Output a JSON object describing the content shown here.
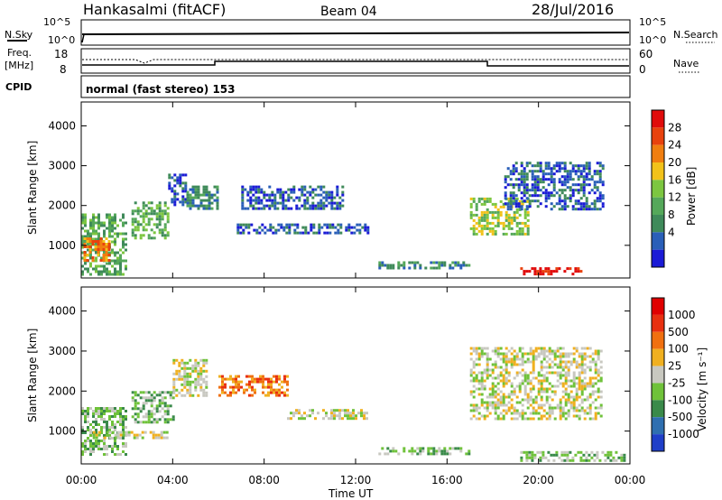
{
  "header": {
    "station": "Hankasalmi (fitACF)",
    "beam": "Beam 04",
    "date": "28/Jul/2016"
  },
  "status_panels": {
    "sky_label": "N.Sky",
    "search_label": "N.Search",
    "sky_ticks": [
      "10^5",
      "10^0"
    ],
    "search_ticks": [
      "10^5",
      "10^0"
    ],
    "freq_label": [
      "Freq.",
      "[MHz]"
    ],
    "freq_ticks": [
      "18",
      "8"
    ],
    "nave_label": "Nave",
    "nave_ticks": [
      "60",
      "0"
    ],
    "cpid_label": "CPID",
    "cpid_text": "normal (fast stereo) 153"
  },
  "x_axis": {
    "label": "Time UT",
    "ticks": [
      "00:00",
      "04:00",
      "08:00",
      "12:00",
      "16:00",
      "20:00",
      "00:00"
    ],
    "range_hours": [
      0,
      24
    ]
  },
  "power_panel": {
    "ylabel": "Slant Range [km]",
    "y_ticks": [
      "4000",
      "3000",
      "2000",
      "1000"
    ],
    "colorbar_label": "Power [dB]",
    "colorbar_ticks": [
      "28",
      "24",
      "20",
      "16",
      "12",
      "8",
      "4"
    ],
    "colors": [
      "#1b1bd6",
      "#2a5fb8",
      "#3f8a5a",
      "#55a85a",
      "#7cc640",
      "#f2c21a",
      "#f07e10",
      "#e8420e",
      "#e00b0b"
    ]
  },
  "velocity_panel": {
    "ylabel": "Slant Range [km]",
    "y_ticks": [
      "4000",
      "3000",
      "2000",
      "1000"
    ],
    "colorbar_label": "Velocity [m s⁻¹]",
    "colorbar_ticks": [
      "1000",
      "500",
      "100",
      "25",
      "-25",
      "-100",
      "-500",
      "-1000"
    ],
    "colors": [
      "#1f3fc8",
      "#2f6fb0",
      "#3a8a4a",
      "#6fc23a",
      "#c8c8c0",
      "#f0b020",
      "#f07010",
      "#e83010",
      "#e00000"
    ]
  },
  "chart_data": {
    "type": "heatmap",
    "x_unit": "hours UT",
    "y_unit": "km",
    "ylim": [
      180,
      4600
    ],
    "power_regions": [
      {
        "t0": 0.0,
        "t1": 1.9,
        "r0": 300,
        "r1": 1800,
        "level": 3
      },
      {
        "t0": 0.1,
        "t1": 1.2,
        "r0": 600,
        "r1": 1200,
        "level": 6
      },
      {
        "t0": 2.2,
        "t1": 3.8,
        "r0": 1200,
        "r1": 2100,
        "level": 3
      },
      {
        "t0": 3.8,
        "t1": 4.6,
        "r0": 2000,
        "r1": 2800,
        "level": 1
      },
      {
        "t0": 4.6,
        "t1": 6.0,
        "r0": 1900,
        "r1": 2500,
        "level": 2
      },
      {
        "t0": 6.8,
        "t1": 12.5,
        "r0": 1300,
        "r1": 1550,
        "level": 1
      },
      {
        "t0": 7.0,
        "t1": 11.5,
        "r0": 1900,
        "r1": 2500,
        "level": 1
      },
      {
        "t0": 13.0,
        "t1": 17.0,
        "r0": 450,
        "r1": 600,
        "level": 2
      },
      {
        "t0": 17.0,
        "t1": 19.6,
        "r0": 1300,
        "r1": 2200,
        "level": 4
      },
      {
        "t0": 18.5,
        "t1": 22.8,
        "r0": 1900,
        "r1": 3100,
        "level": 1
      },
      {
        "t0": 19.2,
        "t1": 22.0,
        "r0": 250,
        "r1": 450,
        "level": 8
      }
    ],
    "velocity_regions": [
      {
        "t0": 0.0,
        "t1": 2.0,
        "r0": 400,
        "r1": 1600,
        "level": 3
      },
      {
        "t0": 0.5,
        "t1": 3.8,
        "r0": 800,
        "r1": 1000,
        "level": 4
      },
      {
        "t0": 2.2,
        "t1": 4.0,
        "r0": 1200,
        "r1": 2000,
        "level": 3
      },
      {
        "t0": 4.0,
        "t1": 5.5,
        "r0": 1900,
        "r1": 2800,
        "level": 4
      },
      {
        "t0": 6.0,
        "t1": 9.0,
        "r0": 1900,
        "r1": 2400,
        "level": 6
      },
      {
        "t0": 9.0,
        "t1": 12.5,
        "r0": 1300,
        "r1": 1550,
        "level": 4
      },
      {
        "t0": 13.0,
        "t1": 17.0,
        "r0": 450,
        "r1": 600,
        "level": 3
      },
      {
        "t0": 17.0,
        "t1": 22.8,
        "r0": 1300,
        "r1": 3100,
        "level": 4
      },
      {
        "t0": 19.2,
        "t1": 23.8,
        "r0": 250,
        "r1": 500,
        "level": 3
      }
    ]
  }
}
